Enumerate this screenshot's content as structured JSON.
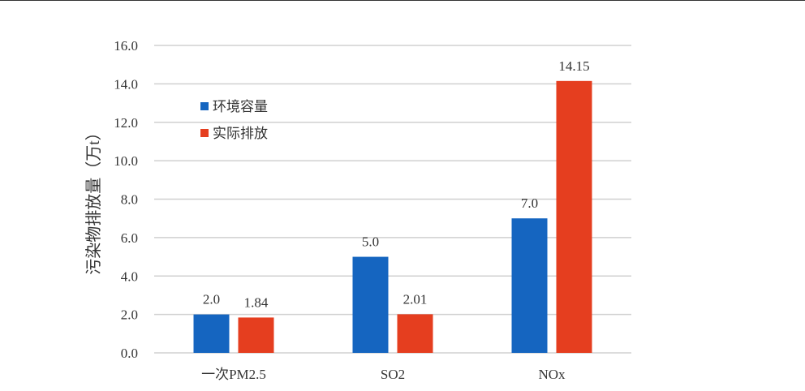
{
  "chart_data": {
    "type": "bar",
    "title": "",
    "xlabel": "",
    "ylabel": "污染物排放量（万t）",
    "ylim": [
      0,
      16
    ],
    "yticks": [
      "0.0",
      "2.0",
      "4.0",
      "6.0",
      "8.0",
      "10.0",
      "12.0",
      "14.0",
      "16.0"
    ],
    "grid": true,
    "legend_position": "top-left",
    "categories": [
      "一次PM2.5",
      "SO2",
      "NOx"
    ],
    "series": [
      {
        "name": "环境容量",
        "color": "#1565c0",
        "values": [
          2.0,
          5.0,
          7.0
        ],
        "labels": [
          "2.0",
          "5.0",
          "7.0"
        ]
      },
      {
        "name": "实际排放",
        "color": "#e53e1f",
        "values": [
          1.84,
          2.01,
          14.15
        ],
        "labels": [
          "1.84",
          "2.01",
          "14.15"
        ]
      }
    ]
  }
}
